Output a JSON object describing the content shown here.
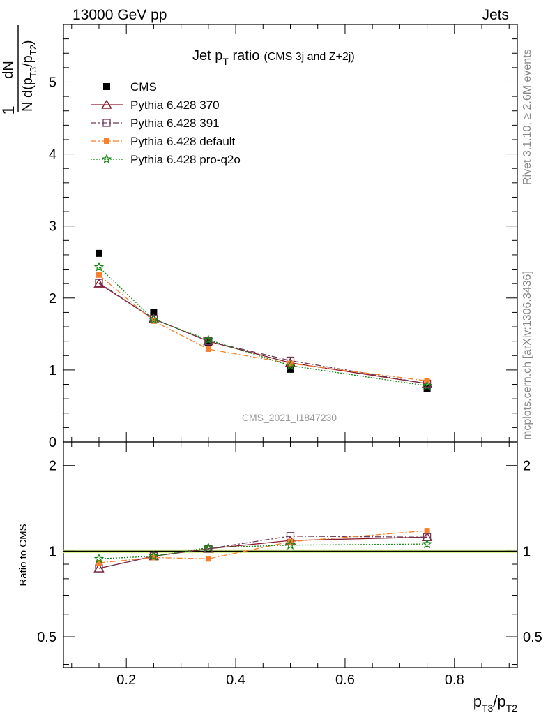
{
  "header": {
    "energy_label": "13000 GeV pp",
    "process_label": "Jets"
  },
  "side_labels": {
    "rivet": "Rivet 3.1.10, ≥ 2.6M events",
    "mcplots": "mcplots.cern.ch [arXiv:1306.3436]"
  },
  "watermark": "CMS_2021_I1847230",
  "chart_data": [
    {
      "type": "scatter",
      "title_main": "Jet p",
      "title_sub": "T",
      "title_rest": " ratio",
      "title_small": "(CMS 3j and Z+2j)",
      "ylabel_num": "dN",
      "ylabel_den": "N d(p",
      "ylabel_den_sub1": "T3",
      "ylabel_den_mid": "/p",
      "ylabel_den_sub2": "T2",
      "ylabel_den_end": ")",
      "ylabel_one": "1",
      "xlim": [
        0.085,
        0.915
      ],
      "ylim": [
        0,
        5.8
      ],
      "yticks": [
        {
          "v": 0,
          "label": "0"
        },
        {
          "v": 1,
          "label": "1"
        },
        {
          "v": 2,
          "label": "2"
        },
        {
          "v": 3,
          "label": "3"
        },
        {
          "v": 4,
          "label": "4"
        },
        {
          "v": 5,
          "label": "5"
        }
      ],
      "x": [
        0.15,
        0.25,
        0.35,
        0.5,
        0.75
      ],
      "series": [
        {
          "name": "CMS",
          "values": [
            2.62,
            1.8,
            1.38,
            1.01,
            0.74
          ],
          "color": "#000000",
          "marker": "square-filled",
          "line": "none"
        },
        {
          "name": "Pythia 6.428 370",
          "values": [
            2.2,
            1.71,
            1.4,
            1.1,
            0.81
          ],
          "color": "#8b1a2e",
          "marker": "triangle-open",
          "line": "solid"
        },
        {
          "name": "Pythia 6.428 391",
          "values": [
            2.21,
            1.71,
            1.4,
            1.13,
            0.81
          ],
          "color": "#6b3a5a",
          "marker": "square-open",
          "line": "dashdot"
        },
        {
          "name": "Pythia 6.428 default",
          "values": [
            2.32,
            1.68,
            1.29,
            1.09,
            0.85
          ],
          "color": "#f7812e",
          "marker": "square-small",
          "line": "dashdot"
        },
        {
          "name": "Pythia 6.428 pro-q2o",
          "values": [
            2.43,
            1.7,
            1.42,
            1.06,
            0.78
          ],
          "color": "#118811",
          "marker": "star",
          "line": "dotted"
        }
      ]
    },
    {
      "type": "scatter",
      "ylabel": "Ratio to CMS",
      "xlabel_main": "p",
      "xlabel_sub1": "T3",
      "xlabel_mid": "/p",
      "xlabel_sub2": "T2",
      "xlim": [
        0.085,
        0.915
      ],
      "ylim": [
        0.39,
        2.42
      ],
      "log_scale_y": true,
      "yticks": [
        {
          "v": 0.5,
          "label": "0.5"
        },
        {
          "v": 1,
          "label": "1"
        },
        {
          "v": 2,
          "label": "2"
        }
      ],
      "xticks": [
        {
          "v": 0.2,
          "label": "0.2"
        },
        {
          "v": 0.4,
          "label": "0.4"
        },
        {
          "v": 0.6,
          "label": "0.6"
        },
        {
          "v": 0.8,
          "label": "0.8"
        }
      ],
      "band": [
        0.985,
        1.015
      ],
      "x": [
        0.15,
        0.25,
        0.35,
        0.5,
        0.75
      ],
      "series": [
        {
          "name": "Pythia 6.428 370",
          "values": [
            0.87,
            0.96,
            1.02,
            1.09,
            1.12
          ],
          "color": "#8b1a2e",
          "marker": "triangle-open",
          "line": "solid"
        },
        {
          "name": "Pythia 6.428 391",
          "values": [
            0.87,
            0.96,
            1.02,
            1.13,
            1.12
          ],
          "color": "#6b3a5a",
          "marker": "square-open",
          "line": "dashdot"
        },
        {
          "name": "Pythia 6.428 default",
          "values": [
            0.91,
            0.95,
            0.94,
            1.08,
            1.18
          ],
          "color": "#f7812e",
          "marker": "square-small",
          "line": "dashdot"
        },
        {
          "name": "Pythia 6.428 pro-q2o",
          "values": [
            0.94,
            0.96,
            1.03,
            1.05,
            1.06
          ],
          "color": "#118811",
          "marker": "star",
          "line": "dotted"
        }
      ]
    }
  ]
}
